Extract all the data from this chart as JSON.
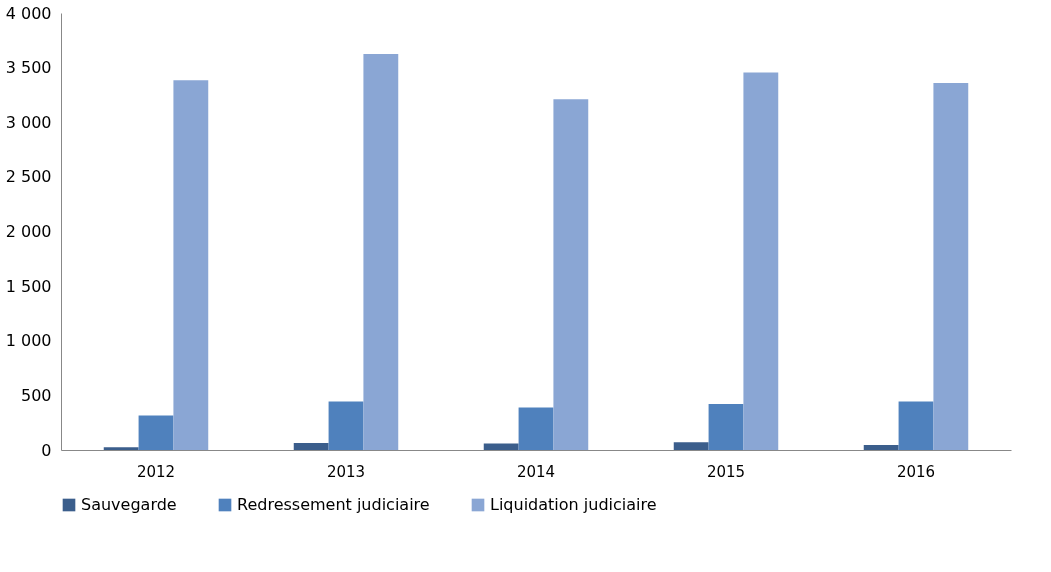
{
  "chart_data": {
    "type": "bar",
    "categories": [
      "2012",
      "2013",
      "2014",
      "2015",
      "2016"
    ],
    "series": [
      {
        "name": "Sauvegarde",
        "color": "#3b5e8c",
        "values": [
          25,
          65,
          60,
          70,
          45
        ]
      },
      {
        "name": "Redressement judiciaire",
        "color": "#4f81bd",
        "values": [
          315,
          445,
          390,
          420,
          445
        ]
      },
      {
        "name": "Liquidation judiciaire",
        "color": "#8aa6d4",
        "values": [
          3385,
          3625,
          3210,
          3455,
          3360
        ]
      }
    ],
    "ylim": [
      0,
      4000
    ],
    "yticks": [
      0,
      500,
      {
        "value": 1000,
        "label": "1 000"
      },
      {
        "value": 1500,
        "label": "1 500"
      },
      {
        "value": 2000,
        "label": "2 000"
      },
      {
        "value": 2500,
        "label": "2 500"
      },
      {
        "value": 3000,
        "label": "3 000"
      },
      {
        "value": 3500,
        "label": "3 500"
      },
      {
        "value": 4000,
        "label": "4 000"
      }
    ],
    "grid": false,
    "legend": "bottom"
  }
}
